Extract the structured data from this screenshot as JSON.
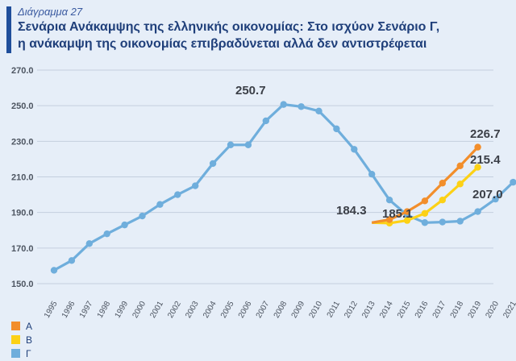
{
  "header": {
    "kicker": "Διάγραμμα 27",
    "title_line1": "Σενάρια Ανάκαμψης της ελληνικής οικονομίας: Στο ισχύον Σενάριο Γ,",
    "title_line2": "η ανάκαμψη της οικονομίας επιβραδύνεται αλλά δεν αντιστρέφεται"
  },
  "chart_data": {
    "type": "line",
    "x_labels": [
      "1995",
      "1996",
      "1997",
      "1998",
      "1999",
      "2000",
      "2001",
      "2002",
      "2003",
      "2004",
      "2005",
      "2006",
      "2007",
      "2008",
      "2009",
      "2010",
      "2011",
      "2012",
      "2013",
      "2014",
      "2015",
      "2016",
      "2017",
      "2018",
      "2019",
      "2020",
      "2021"
    ],
    "y_ticks": [
      "150.0",
      "170.0",
      "190.0",
      "210.0",
      "230.0",
      "250.0",
      "270.0"
    ],
    "ylim": [
      150,
      270
    ],
    "series": [
      {
        "name": "Α",
        "color": "#f28e2b",
        "points": [
          [
            "2013",
            184.3
          ],
          [
            "2014",
            186.0
          ],
          [
            "2015",
            190.5
          ],
          [
            "2016",
            196.5
          ],
          [
            "2017",
            206.5
          ],
          [
            "2018",
            216.2
          ],
          [
            "2019",
            226.7
          ]
        ]
      },
      {
        "name": "Β",
        "color": "#fcd116",
        "points": [
          [
            "2013",
            184.3
          ],
          [
            "2014",
            184.0
          ],
          [
            "2015",
            185.5
          ],
          [
            "2016",
            189.5
          ],
          [
            "2017",
            197.0
          ],
          [
            "2018",
            206.0
          ],
          [
            "2019",
            215.4
          ]
        ]
      },
      {
        "name": "Γ",
        "color": "#6faedc",
        "points": [
          [
            "1995",
            157.5
          ],
          [
            "1996",
            163
          ],
          [
            "1997",
            172.5
          ],
          [
            "1998",
            178
          ],
          [
            "1999",
            183
          ],
          [
            "2000",
            188
          ],
          [
            "2001",
            194.5
          ],
          [
            "2002",
            200
          ],
          [
            "2003",
            205
          ],
          [
            "2004",
            217.5
          ],
          [
            "2005",
            228
          ],
          [
            "2006",
            228
          ],
          [
            "2007",
            241.5
          ],
          [
            "2008",
            250.7
          ],
          [
            "2009",
            249.5
          ],
          [
            "2010",
            247
          ],
          [
            "2011",
            237
          ],
          [
            "2012",
            225.5
          ],
          [
            "2013",
            211.5
          ],
          [
            "2014",
            197
          ],
          [
            "2015",
            188.5
          ],
          [
            "2016",
            184.3
          ],
          [
            "2017",
            184.6
          ],
          [
            "2018",
            185.1
          ],
          [
            "2019",
            190.5
          ],
          [
            "2020",
            197.5
          ],
          [
            "2021",
            207.0
          ]
        ]
      }
    ],
    "annotations": [
      {
        "text": "250.7"
      },
      {
        "text": "226.7"
      },
      {
        "text": "215.4"
      },
      {
        "text": "207.0"
      },
      {
        "text": "184.3"
      },
      {
        "text": "185.1"
      }
    ]
  },
  "legend": [
    {
      "label": "Α",
      "color": "#f28e2b"
    },
    {
      "label": "Β",
      "color": "#fcd116"
    },
    {
      "label": "Γ",
      "color": "#6faedc"
    }
  ]
}
